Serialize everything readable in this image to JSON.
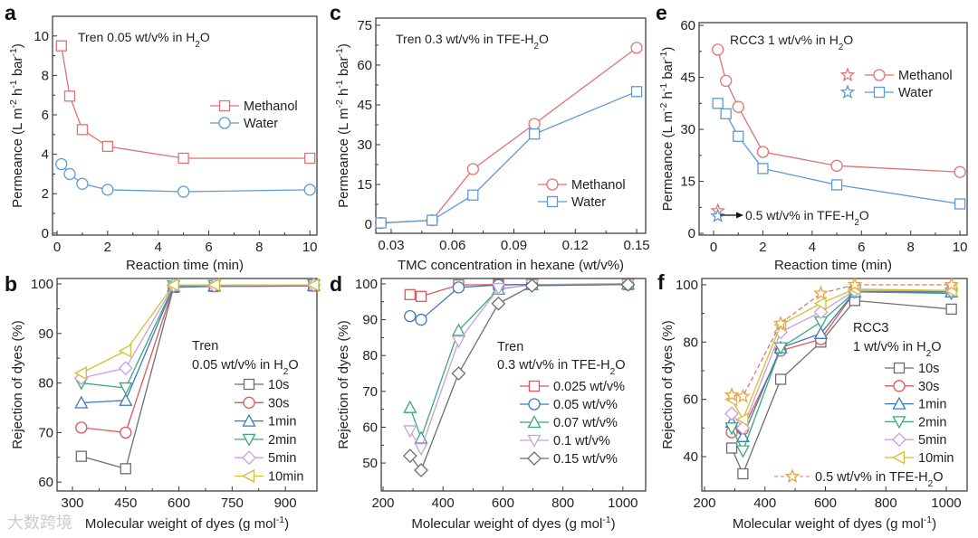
{
  "watermark": "大数跨境",
  "chart_data": [
    {
      "id": "a",
      "type": "line",
      "letter": "a",
      "annotation": "Tren 0.05 wt/v% in H_{2}O",
      "xlabel": "Reaction time (min)",
      "ylabel": "Permeance (L m^{-2} h^{-1} bar^{-1})",
      "xlim": [
        -0.18,
        10.28
      ],
      "ylim": [
        -0.1,
        11
      ],
      "xticks": [
        0,
        2,
        4,
        6,
        8,
        10
      ],
      "yticks": [
        0,
        2,
        4,
        6,
        8,
        10
      ],
      "x": [
        0.17,
        0.5,
        1,
        2,
        5,
        10
      ],
      "series": [
        {
          "name": "Methanol",
          "marker": "square",
          "color": "#e07272",
          "values": [
            9.5,
            6.95,
            5.25,
            4.4,
            3.8,
            3.8
          ]
        },
        {
          "name": "Water",
          "marker": "circle",
          "color": "#5b9bd5",
          "values": [
            3.5,
            3.0,
            2.5,
            2.2,
            2.1,
            2.2
          ]
        }
      ]
    },
    {
      "id": "c",
      "type": "line",
      "letter": "c",
      "annotation": "Tren 0.3 wt/v% in TFE-H_{2}O",
      "xlabel": "TMC concentration in hexane (wt/v%)",
      "ylabel": "Permeance (L m^{-2} h^{-1} bar^{-1})",
      "xlim": [
        0.0225,
        0.1544
      ],
      "ylim": [
        -3.4,
        77.7
      ],
      "xticks": [
        0.03,
        0.06,
        0.09,
        0.12,
        0.15
      ],
      "yticks": [
        0,
        15,
        30,
        45,
        60,
        75
      ],
      "x": [
        0.025,
        0.05,
        0.07,
        0.1,
        0.15
      ],
      "series": [
        {
          "name": "Methanol",
          "marker": "circle",
          "color": "#e07272",
          "values": [
            0.5,
            1.5,
            20.8,
            37.8,
            66.5
          ]
        },
        {
          "name": "Water",
          "marker": "square",
          "color": "#5b9bd5",
          "values": [
            0.5,
            1.5,
            11,
            34,
            50
          ]
        }
      ]
    },
    {
      "id": "e",
      "type": "line",
      "letter": "e",
      "annotation": "RCC3 1 wt/v% in H_{2}O",
      "extra_annotation": "0.5 wt/v% in TFE-H_{2}O",
      "xlabel": "Reaction time (min)",
      "ylabel": "Permeance (L m^{-2} h^{-1} bar^{-1})",
      "xlim": [
        -0.59,
        10.29
      ],
      "ylim": [
        -0.5,
        60.8
      ],
      "xticks": [
        0,
        2,
        4,
        6,
        8,
        10
      ],
      "yticks": [
        0,
        15,
        30,
        45,
        60
      ],
      "x": [
        0.17,
        0.5,
        1,
        2,
        5,
        10
      ],
      "series": [
        {
          "name": "Methanol",
          "marker": "circle",
          "color": "#e07272",
          "values": [
            53,
            44,
            36.5,
            23.5,
            19.5,
            17.7
          ],
          "star_value": 6.5
        },
        {
          "name": "Water",
          "marker": "square",
          "color": "#5b9bd5",
          "values": [
            37.5,
            34.5,
            28,
            18.7,
            14,
            8.5
          ],
          "star_value": 5
        }
      ]
    },
    {
      "id": "b",
      "type": "line",
      "letter": "b",
      "legend_title": [
        "Tren",
        "0.05 wt/v% in H_{2}O"
      ],
      "xlabel": "Molecular weight of dyes (g mol^{-1})",
      "ylabel": "Rejection of dyes (%)",
      "xlim": [
        256.6,
        989
      ],
      "ylim": [
        58.2,
        101.1
      ],
      "xticks": [
        300,
        450,
        600,
        750,
        900
      ],
      "yticks": [
        60,
        70,
        80,
        90,
        100
      ],
      "x": [
        325,
        450,
        585,
        700,
        980
      ],
      "series": [
        {
          "name": "10s",
          "marker": "square",
          "color": "#6e6e6e",
          "values": [
            65.2,
            62.7,
            99.3,
            99.5,
            99.6
          ]
        },
        {
          "name": "30s",
          "marker": "circle",
          "color": "#e05656",
          "values": [
            71,
            70,
            99.4,
            99.5,
            99.6
          ]
        },
        {
          "name": "1min",
          "marker": "triangle-up",
          "color": "#3a78c0",
          "values": [
            76,
            76.5,
            99.5,
            99.6,
            99.7
          ]
        },
        {
          "name": "2min",
          "marker": "triangle-down",
          "color": "#3aa878",
          "values": [
            80,
            79,
            99.6,
            99.7,
            99.8
          ]
        },
        {
          "name": "5min",
          "marker": "diamond",
          "color": "#c8a0e0",
          "values": [
            81,
            83,
            99.7,
            99.7,
            99.8
          ]
        },
        {
          "name": "10min",
          "marker": "triangle-left",
          "color": "#d4c030",
          "values": [
            82,
            86.5,
            99.8,
            99.8,
            99.8
          ]
        }
      ]
    },
    {
      "id": "d",
      "type": "line",
      "letter": "d",
      "legend_title": [
        "Tren",
        "0.3 wt/v% in TFE-H_{2}O"
      ],
      "xlabel": "Molecular weight of dyes (g mol^{-1})",
      "ylabel": "Rejection of dyes (%)",
      "xlim": [
        194,
        1076
      ],
      "ylim": [
        42.2,
        101.5
      ],
      "xticks": [
        200,
        400,
        600,
        800,
        1000
      ],
      "yticks": [
        50,
        60,
        70,
        80,
        90,
        100
      ],
      "x": [
        290,
        327,
        452,
        585,
        697,
        1017
      ],
      "series": [
        {
          "name": "0.025 wt/v%",
          "marker": "square",
          "color": "#e05656",
          "values": [
            97,
            96.5,
            99.7,
            99.8,
            99.8,
            99.8
          ]
        },
        {
          "name": "0.05 wt/v%",
          "marker": "circle",
          "color": "#3a78c0",
          "values": [
            91,
            90,
            99,
            99.7,
            99.8,
            99.8
          ]
        },
        {
          "name": "0.07 wt/v%",
          "marker": "triangle-up",
          "color": "#3aa878",
          "values": [
            65.5,
            57,
            87,
            98.5,
            99.8,
            100
          ]
        },
        {
          "name": "0.1 wt/v%",
          "marker": "triangle-down",
          "color": "#c8a0e0",
          "values": [
            59,
            54,
            84,
            98.7,
            99.7,
            99.8
          ]
        },
        {
          "name": "0.15 wt/v%",
          "marker": "diamond",
          "color": "#6e6e6e",
          "values": [
            52,
            48,
            75,
            94.5,
            99.5,
            99.8
          ]
        }
      ]
    },
    {
      "id": "f",
      "type": "line",
      "letter": "f",
      "legend_title": [
        "RCC3",
        "1 wt/v% in H_{2}O"
      ],
      "xlabel": "Molecular weight of dyes (g mol^{-1})",
      "ylabel": "Rejection of dyes (%)",
      "xlim": [
        191,
        1069
      ],
      "ylim": [
        28,
        102.2
      ],
      "xticks": [
        200,
        400,
        600,
        800,
        1000
      ],
      "yticks": [
        40,
        60,
        80,
        100
      ],
      "x": [
        290,
        327,
        452,
        585,
        697,
        1017
      ],
      "series": [
        {
          "name": "10s",
          "marker": "square",
          "color": "#6e6e6e",
          "values": [
            43,
            34,
            67,
            80,
            94.5,
            91.5
          ]
        },
        {
          "name": "30s",
          "marker": "circle",
          "color": "#e05656",
          "values": [
            48.5,
            49.5,
            77,
            81,
            97.5,
            98
          ]
        },
        {
          "name": "1min",
          "marker": "triangle-up",
          "color": "#3a78c0",
          "values": [
            52,
            47,
            78,
            83,
            97.5,
            97.5
          ]
        },
        {
          "name": "2min",
          "marker": "triangle-down",
          "color": "#3aa878",
          "values": [
            50,
            42,
            78,
            87,
            97.5,
            97
          ]
        },
        {
          "name": "5min",
          "marker": "diamond",
          "color": "#c8a0e0",
          "values": [
            55,
            50,
            83.5,
            90.5,
            98,
            98
          ]
        },
        {
          "name": "10min",
          "marker": "triangle-left",
          "color": "#d4c030",
          "values": [
            60,
            53,
            86,
            93.5,
            98.5,
            98
          ]
        },
        {
          "name": "0.5 wt/v% in TFE-H_{2}O",
          "marker": "star",
          "color": "#f0a040",
          "line_color": "#e07272",
          "dashed": true,
          "values": [
            61.5,
            61,
            86.5,
            97,
            100,
            100
          ]
        }
      ]
    }
  ]
}
